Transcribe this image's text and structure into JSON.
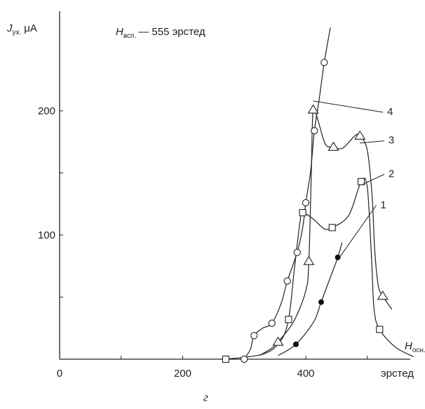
{
  "chart_data": {
    "type": "line",
    "annotation": {
      "symbol": "H",
      "subscript": "всп.",
      "text": "— 555 эрстед"
    },
    "ylabel": {
      "symbol": "J",
      "subscript": "ух.",
      "unit": "μA"
    },
    "xlabel": {
      "symbol": "H",
      "subscript": "осн.",
      "unit": "эрстед"
    },
    "caption": "г",
    "xlim": [
      0,
      600
    ],
    "ylim": [
      0,
      265
    ],
    "x_ticks": [
      0,
      200,
      400
    ],
    "y_ticks": [
      100,
      200
    ],
    "x_minor_ticks": [
      100,
      300,
      500
    ],
    "y_minor_ticks": [
      50,
      150
    ],
    "grid": false,
    "series": [
      {
        "name": "1",
        "marker": "filled-circle",
        "points": [
          [
            384,
            12
          ],
          [
            425,
            46
          ],
          [
            452,
            82
          ]
        ],
        "curve": [
          [
            355,
            3
          ],
          [
            370,
            7
          ],
          [
            384,
            12
          ],
          [
            400,
            21
          ],
          [
            415,
            32
          ],
          [
            425,
            46
          ],
          [
            440,
            66
          ],
          [
            452,
            82
          ],
          [
            459,
            94
          ]
        ]
      },
      {
        "name": "2",
        "marker": "square",
        "points": [
          [
            270,
            0
          ],
          [
            372,
            32
          ],
          [
            395,
            118
          ],
          [
            443,
            106
          ],
          [
            490,
            143
          ],
          [
            520,
            24
          ]
        ],
        "curve": [
          [
            270,
            0
          ],
          [
            330,
            4
          ],
          [
            358,
            14
          ],
          [
            372,
            32
          ],
          [
            382,
            75
          ],
          [
            391,
            112
          ],
          [
            395,
            118
          ],
          [
            412,
            113
          ],
          [
            430,
            105
          ],
          [
            443,
            106
          ],
          [
            470,
            116
          ],
          [
            490,
            143
          ],
          [
            500,
            138
          ],
          [
            507,
            80
          ],
          [
            511,
            40
          ],
          [
            520,
            24
          ],
          [
            545,
            10
          ],
          [
            575,
            2
          ]
        ]
      },
      {
        "name": "3",
        "marker": "triangle",
        "points": [
          [
            355,
            14
          ],
          [
            405,
            79
          ],
          [
            412,
            201
          ],
          [
            445,
            171
          ],
          [
            488,
            180
          ],
          [
            525,
            51
          ]
        ],
        "curve": [
          [
            325,
            3
          ],
          [
            345,
            9
          ],
          [
            355,
            14
          ],
          [
            380,
            30
          ],
          [
            400,
            55
          ],
          [
            405,
            79
          ],
          [
            409,
            150
          ],
          [
            412,
            201
          ],
          [
            420,
            192
          ],
          [
            432,
            173
          ],
          [
            445,
            171
          ],
          [
            460,
            170
          ],
          [
            480,
            180
          ],
          [
            488,
            180
          ],
          [
            500,
            168
          ],
          [
            508,
            130
          ],
          [
            512,
            88
          ],
          [
            518,
            59
          ],
          [
            525,
            51
          ],
          [
            540,
            40
          ]
        ]
      },
      {
        "name": "4",
        "marker": "circle",
        "points": [
          [
            300,
            0
          ],
          [
            316,
            19
          ],
          [
            345,
            29
          ],
          [
            370,
            63
          ],
          [
            386,
            86
          ],
          [
            400,
            126
          ],
          [
            414,
            184
          ],
          [
            430,
            239
          ]
        ],
        "curve": [
          [
            300,
            0
          ],
          [
            310,
            8
          ],
          [
            316,
            19
          ],
          [
            330,
            25
          ],
          [
            345,
            29
          ],
          [
            360,
            45
          ],
          [
            370,
            63
          ],
          [
            386,
            86
          ],
          [
            395,
            106
          ],
          [
            400,
            126
          ],
          [
            408,
            152
          ],
          [
            414,
            184
          ],
          [
            422,
            210
          ],
          [
            430,
            239
          ],
          [
            440,
            267
          ]
        ]
      }
    ],
    "series_labels": [
      {
        "name": "1",
        "anchor": [
          452,
          80
        ],
        "label_at": [
          519,
          125
        ]
      },
      {
        "name": "2",
        "anchor": [
          493,
          141
        ],
        "label_at": [
          532,
          150
        ]
      },
      {
        "name": "3",
        "anchor": [
          488,
          174
        ],
        "label_at": [
          532,
          177
        ]
      },
      {
        "name": "4",
        "anchor": [
          412,
          208
        ],
        "label_at": [
          530,
          200
        ]
      }
    ]
  }
}
